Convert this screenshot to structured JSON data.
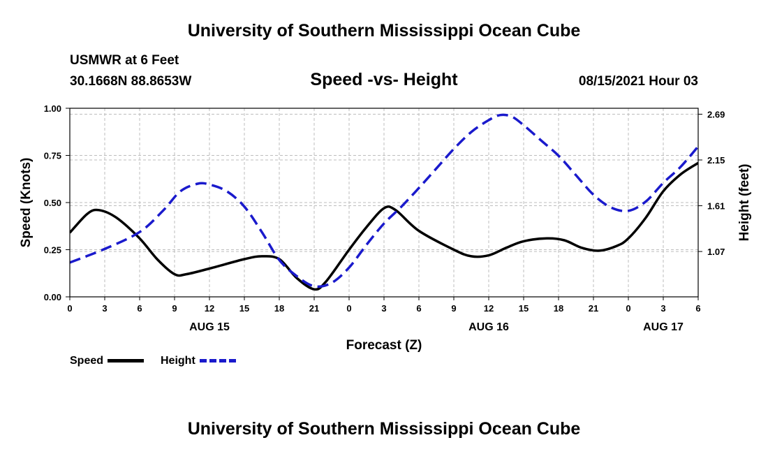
{
  "header": {
    "title": "University of Southern Mississippi Ocean Cube",
    "station": "USMWR at 6 Feet",
    "coordinates": "30.1668N  88.8653W",
    "date": "08/15/2021 Hour 03"
  },
  "footer": {
    "title": "University of Southern Mississippi Ocean Cube"
  },
  "chart_data": {
    "type": "line",
    "title": "Speed -vs- Height",
    "xlabel": "Forecast (Z)",
    "ylabel": "Speed (Knots)",
    "y2label": "Height (feet)",
    "grid": true,
    "legend_position": "bottom-left",
    "x_unit": "hours since 08/15 00Z",
    "xlim": [
      0,
      54
    ],
    "ylim": [
      0,
      1
    ],
    "y2lim": [
      0.535,
      2.76
    ],
    "x_ticks": [
      {
        "x": 0,
        "label": "0"
      },
      {
        "x": 3,
        "label": "3"
      },
      {
        "x": 6,
        "label": "6"
      },
      {
        "x": 9,
        "label": "9"
      },
      {
        "x": 12,
        "label": "12"
      },
      {
        "x": 15,
        "label": "15"
      },
      {
        "x": 18,
        "label": "18"
      },
      {
        "x": 21,
        "label": "21"
      },
      {
        "x": 24,
        "label": "0"
      },
      {
        "x": 27,
        "label": "3"
      },
      {
        "x": 30,
        "label": "6"
      },
      {
        "x": 33,
        "label": "9"
      },
      {
        "x": 36,
        "label": "12"
      },
      {
        "x": 39,
        "label": "15"
      },
      {
        "x": 42,
        "label": "18"
      },
      {
        "x": 45,
        "label": "21"
      },
      {
        "x": 48,
        "label": "0"
      },
      {
        "x": 51,
        "label": "3"
      },
      {
        "x": 54,
        "label": "6"
      }
    ],
    "date_labels": [
      {
        "x": 12,
        "label": "AUG 15"
      },
      {
        "x": 36,
        "label": "AUG 16"
      },
      {
        "x": 51,
        "label": "AUG 17"
      }
    ],
    "y_ticks": [
      {
        "v": 0,
        "label": "0.00"
      },
      {
        "v": 0.25,
        "label": "0.25"
      },
      {
        "v": 0.5,
        "label": "0.50"
      },
      {
        "v": 0.75,
        "label": "0.75"
      },
      {
        "v": 1,
        "label": "1.00"
      }
    ],
    "y2_ticks": [
      {
        "v": 1.07,
        "label": "1.07"
      },
      {
        "v": 1.61,
        "label": "1.61"
      },
      {
        "v": 2.15,
        "label": "2.15"
      },
      {
        "v": 2.69,
        "label": "2.69"
      }
    ],
    "series": [
      {
        "name": "Speed",
        "axis": "left",
        "color": "#000000",
        "dash": "solid",
        "points": [
          [
            0,
            0.34
          ],
          [
            1.5,
            0.44
          ],
          [
            2.5,
            0.46
          ],
          [
            4,
            0.42
          ],
          [
            6,
            0.31
          ],
          [
            7.5,
            0.2
          ],
          [
            9,
            0.12
          ],
          [
            10,
            0.12
          ],
          [
            12,
            0.15
          ],
          [
            15,
            0.2
          ],
          [
            16.5,
            0.215
          ],
          [
            18,
            0.2
          ],
          [
            19.5,
            0.1
          ],
          [
            21,
            0.04
          ],
          [
            22,
            0.08
          ],
          [
            24,
            0.25
          ],
          [
            25.5,
            0.37
          ],
          [
            27,
            0.47
          ],
          [
            28,
            0.46
          ],
          [
            30,
            0.35
          ],
          [
            33,
            0.25
          ],
          [
            34.5,
            0.215
          ],
          [
            36,
            0.22
          ],
          [
            37.5,
            0.26
          ],
          [
            39,
            0.295
          ],
          [
            41,
            0.31
          ],
          [
            42.5,
            0.3
          ],
          [
            44,
            0.26
          ],
          [
            45.5,
            0.245
          ],
          [
            47,
            0.27
          ],
          [
            48,
            0.31
          ],
          [
            49.5,
            0.42
          ],
          [
            51,
            0.56
          ],
          [
            52.5,
            0.65
          ],
          [
            54,
            0.71
          ]
        ]
      },
      {
        "name": "Height",
        "axis": "right",
        "color": "#1a1acc",
        "dash": "dashed",
        "points": [
          [
            0,
            0.94
          ],
          [
            3,
            1.1
          ],
          [
            6,
            1.3
          ],
          [
            8,
            1.55
          ],
          [
            9.5,
            1.78
          ],
          [
            11,
            1.87
          ],
          [
            12,
            1.86
          ],
          [
            13.5,
            1.78
          ],
          [
            15,
            1.6
          ],
          [
            16.5,
            1.3
          ],
          [
            18,
            0.97
          ],
          [
            19.5,
            0.78
          ],
          [
            21,
            0.66
          ],
          [
            22.5,
            0.7
          ],
          [
            24,
            0.88
          ],
          [
            25.5,
            1.15
          ],
          [
            27,
            1.4
          ],
          [
            28.5,
            1.6
          ],
          [
            30,
            1.82
          ],
          [
            31.5,
            2.05
          ],
          [
            33,
            2.28
          ],
          [
            34.5,
            2.48
          ],
          [
            36,
            2.62
          ],
          [
            37,
            2.68
          ],
          [
            38,
            2.66
          ],
          [
            39,
            2.56
          ],
          [
            40.5,
            2.38
          ],
          [
            42,
            2.2
          ],
          [
            43.5,
            1.97
          ],
          [
            45,
            1.74
          ],
          [
            46.5,
            1.59
          ],
          [
            48,
            1.55
          ],
          [
            49.5,
            1.66
          ],
          [
            51,
            1.88
          ],
          [
            52.5,
            2.07
          ],
          [
            54,
            2.31
          ]
        ]
      }
    ]
  }
}
